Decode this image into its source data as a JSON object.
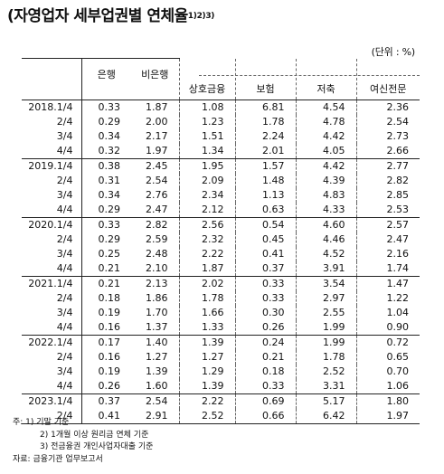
{
  "title": "(자영업자 세부업권별 연체율",
  "title_note": "1)2)3)",
  "unit": "(단위 : %)",
  "headers": {
    "label": "",
    "bank": "은행",
    "nonbank": "비은행",
    "savings_bank": "상호금융",
    "insurance": "보험",
    "savings": "저축",
    "credit": "여신전문"
  },
  "rows": [
    {
      "label": "2018.1/4",
      "values": [
        "0.33",
        "1.87",
        "1.08",
        "6.81",
        "4.54",
        "2.36"
      ]
    },
    {
      "label": "2/4",
      "values": [
        "0.29",
        "2.00",
        "1.23",
        "1.78",
        "4.78",
        "2.54"
      ]
    },
    {
      "label": "3/4",
      "values": [
        "0.34",
        "2.17",
        "1.51",
        "2.24",
        "4.42",
        "2.73"
      ]
    },
    {
      "label": "4/4",
      "values": [
        "0.32",
        "1.97",
        "1.34",
        "2.01",
        "4.05",
        "2.66"
      ]
    },
    {
      "label": "2019.1/4",
      "values": [
        "0.38",
        "2.45",
        "1.95",
        "1.57",
        "4.42",
        "2.77"
      ]
    },
    {
      "label": "2/4",
      "values": [
        "0.31",
        "2.54",
        "2.09",
        "1.48",
        "4.39",
        "2.82"
      ]
    },
    {
      "label": "3/4",
      "values": [
        "0.34",
        "2.76",
        "2.34",
        "1.13",
        "4.83",
        "2.85"
      ]
    },
    {
      "label": "4/4",
      "values": [
        "0.29",
        "2.47",
        "2.12",
        "0.63",
        "4.33",
        "2.53"
      ]
    },
    {
      "label": "2020.1/4",
      "values": [
        "0.33",
        "2.82",
        "2.56",
        "0.54",
        "4.60",
        "2.57"
      ]
    },
    {
      "label": "2/4",
      "values": [
        "0.29",
        "2.59",
        "2.32",
        "0.45",
        "4.46",
        "2.47"
      ]
    },
    {
      "label": "3/4",
      "values": [
        "0.25",
        "2.48",
        "2.22",
        "0.41",
        "4.52",
        "2.16"
      ]
    },
    {
      "label": "4/4",
      "values": [
        "0.21",
        "2.10",
        "1.87",
        "0.37",
        "3.91",
        "1.74"
      ]
    },
    {
      "label": "2021.1/4",
      "values": [
        "0.21",
        "2.13",
        "2.02",
        "0.33",
        "3.54",
        "1.47"
      ]
    },
    {
      "label": "2/4",
      "values": [
        "0.18",
        "1.86",
        "1.78",
        "0.33",
        "2.97",
        "1.22"
      ]
    },
    {
      "label": "3/4",
      "values": [
        "0.19",
        "1.70",
        "1.66",
        "0.30",
        "2.55",
        "1.04"
      ]
    },
    {
      "label": "4/4",
      "values": [
        "0.16",
        "1.37",
        "1.33",
        "0.26",
        "1.99",
        "0.90"
      ]
    },
    {
      "label": "2022.1/4",
      "values": [
        "0.17",
        "1.40",
        "1.39",
        "0.24",
        "1.99",
        "0.72"
      ]
    },
    {
      "label": "2/4",
      "values": [
        "0.16",
        "1.27",
        "1.27",
        "0.21",
        "1.78",
        "0.65"
      ]
    },
    {
      "label": "3/4",
      "values": [
        "0.19",
        "1.39",
        "1.29",
        "0.18",
        "2.52",
        "0.70"
      ]
    },
    {
      "label": "4/4",
      "values": [
        "0.26",
        "1.60",
        "1.39",
        "0.33",
        "3.31",
        "1.06"
      ]
    },
    {
      "label": "2023.1/4",
      "values": [
        "0.37",
        "2.54",
        "2.22",
        "0.69",
        "5.17",
        "1.80"
      ]
    },
    {
      "label": "2/4",
      "values": [
        "0.41",
        "2.91",
        "2.52",
        "0.66",
        "6.42",
        "1.97"
      ]
    }
  ],
  "notes": {
    "n1": "주: 1) 기말 기준",
    "n2": "2) 1개월 이상 원리금 연체 기준",
    "n3": "3) 전금융권 개인사업자대출 기준",
    "source": "자료: 금융기관 업무보고서"
  }
}
